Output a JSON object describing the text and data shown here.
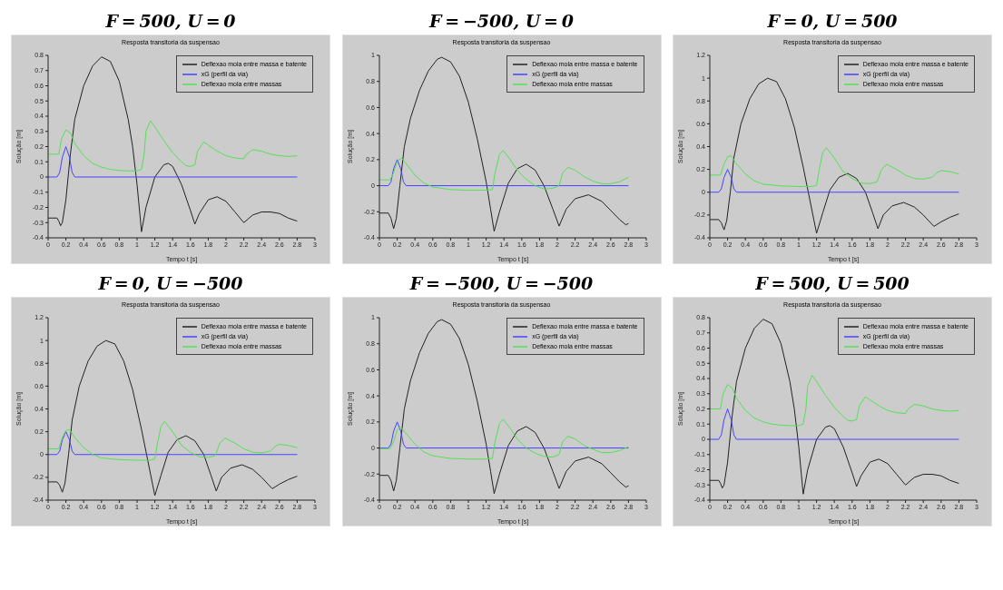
{
  "chart_data": [
    {
      "type": "line",
      "title": "F = 500, U = 0",
      "subtitle": "Resposta transitoria da suspensao",
      "xlabel": "Tempo t [s]",
      "ylabel": "Solução [m]",
      "legend": "top right",
      "xlim": [
        0,
        3
      ],
      "xticks": [
        0,
        0.2,
        0.4,
        0.6,
        0.8,
        1,
        1.2,
        1.4,
        1.6,
        1.8,
        2,
        2.2,
        2.4,
        2.6,
        2.8,
        3
      ],
      "ylim": [
        -0.4,
        0.8
      ],
      "yticks": [
        -0.4,
        -0.3,
        -0.2,
        -0.1,
        0,
        0.1,
        0.2,
        0.3,
        0.4,
        0.5,
        0.6,
        0.7,
        0.8
      ],
      "series": [
        {
          "name": "Deflexao mola entre massa e batente",
          "color": "#222222",
          "x": [
            0,
            0.1,
            0.12,
            0.14,
            0.16,
            0.2,
            0.25,
            0.3,
            0.4,
            0.5,
            0.6,
            0.7,
            0.8,
            0.9,
            0.95,
            1.0,
            1.05,
            1.1,
            1.2,
            1.3,
            1.35,
            1.4,
            1.5,
            1.6,
            1.65,
            1.7,
            1.8,
            1.9,
            2.0,
            2.1,
            2.2,
            2.3,
            2.4,
            2.5,
            2.6,
            2.7,
            2.8
          ],
          "values": [
            -0.27,
            -0.27,
            -0.29,
            -0.32,
            -0.3,
            -0.15,
            0.15,
            0.38,
            0.6,
            0.73,
            0.79,
            0.76,
            0.63,
            0.38,
            0.2,
            -0.05,
            -0.36,
            -0.2,
            0.0,
            0.08,
            0.09,
            0.07,
            -0.05,
            -0.22,
            -0.31,
            -0.24,
            -0.15,
            -0.13,
            -0.16,
            -0.23,
            -0.3,
            -0.25,
            -0.23,
            -0.23,
            -0.24,
            -0.27,
            -0.29
          ]
        },
        {
          "name": "xG (perfil da via)",
          "color": "#4444ff",
          "x": [
            0,
            0.1,
            0.13,
            0.16,
            0.2,
            0.24,
            0.27,
            0.3,
            2.8
          ],
          "values": [
            0,
            0,
            0.03,
            0.13,
            0.2,
            0.13,
            0.03,
            0,
            0
          ]
        },
        {
          "name": "Deflexao mola entre massas",
          "color": "#55e055",
          "x": [
            0,
            0.12,
            0.15,
            0.2,
            0.25,
            0.3,
            0.4,
            0.5,
            0.6,
            0.7,
            0.8,
            0.9,
            1.0,
            1.05,
            1.08,
            1.1,
            1.15,
            1.2,
            1.3,
            1.4,
            1.5,
            1.55,
            1.6,
            1.65,
            1.68,
            1.75,
            1.8,
            1.9,
            2.0,
            2.1,
            2.2,
            2.23,
            2.3,
            2.4,
            2.5,
            2.6,
            2.7,
            2.8
          ],
          "values": [
            0.15,
            0.15,
            0.25,
            0.31,
            0.29,
            0.22,
            0.14,
            0.09,
            0.065,
            0.05,
            0.043,
            0.04,
            0.04,
            0.05,
            0.15,
            0.3,
            0.37,
            0.33,
            0.24,
            0.16,
            0.1,
            0.075,
            0.07,
            0.08,
            0.17,
            0.23,
            0.21,
            0.17,
            0.14,
            0.125,
            0.12,
            0.15,
            0.18,
            0.17,
            0.15,
            0.14,
            0.135,
            0.14
          ]
        }
      ]
    },
    {
      "type": "line",
      "title": "F = −500, U = 0",
      "subtitle": "Resposta transitoria da suspensao",
      "xlabel": "Tempo t [s]",
      "ylabel": "Solução [m]",
      "legend": "top right",
      "xlim": [
        0,
        3
      ],
      "xticks": [
        0,
        0.2,
        0.4,
        0.6,
        0.8,
        1,
        1.2,
        1.4,
        1.6,
        1.8,
        2,
        2.2,
        2.4,
        2.6,
        2.8,
        3
      ],
      "ylim": [
        -0.4,
        1
      ],
      "yticks": [
        -0.4,
        -0.2,
        0,
        0.2,
        0.4,
        0.6,
        0.8,
        1
      ],
      "series": [
        {
          "name": "Deflexao mola entre massa e batente",
          "color": "#222222",
          "x": [
            0,
            0.1,
            0.13,
            0.16,
            0.19,
            0.23,
            0.28,
            0.35,
            0.45,
            0.55,
            0.65,
            0.7,
            0.8,
            0.9,
            1.0,
            1.1,
            1.2,
            1.25,
            1.29,
            1.35,
            1.45,
            1.55,
            1.65,
            1.75,
            1.85,
            1.95,
            2.02,
            2.1,
            2.2,
            2.35,
            2.5,
            2.6,
            2.7,
            2.77,
            2.8
          ],
          "values": [
            -0.21,
            -0.21,
            -0.25,
            -0.33,
            -0.25,
            0.0,
            0.3,
            0.52,
            0.73,
            0.88,
            0.97,
            0.985,
            0.95,
            0.84,
            0.64,
            0.36,
            0.03,
            -0.18,
            -0.35,
            -0.2,
            0.02,
            0.13,
            0.165,
            0.12,
            0.0,
            -0.18,
            -0.31,
            -0.18,
            -0.1,
            -0.07,
            -0.12,
            -0.19,
            -0.26,
            -0.3,
            -0.29
          ]
        },
        {
          "name": "xG (perfil da via)",
          "color": "#4444ff",
          "x": [
            0,
            0.1,
            0.13,
            0.16,
            0.2,
            0.24,
            0.27,
            0.3,
            2.8
          ],
          "values": [
            0,
            0,
            0.03,
            0.13,
            0.2,
            0.13,
            0.03,
            0,
            0
          ]
        },
        {
          "name": "Deflexao mola entre massas",
          "color": "#55e055",
          "x": [
            0,
            0.12,
            0.16,
            0.2,
            0.25,
            0.3,
            0.4,
            0.5,
            0.6,
            0.8,
            1.0,
            1.2,
            1.27,
            1.3,
            1.35,
            1.39,
            1.45,
            1.55,
            1.65,
            1.75,
            1.85,
            1.95,
            2.02,
            2.06,
            2.12,
            2.2,
            2.3,
            2.4,
            2.5,
            2.6,
            2.7,
            2.8
          ],
          "values": [
            0.045,
            0.045,
            0.1,
            0.19,
            0.21,
            0.17,
            0.08,
            0.02,
            -0.01,
            -0.03,
            -0.035,
            -0.035,
            -0.03,
            0.1,
            0.24,
            0.27,
            0.22,
            0.12,
            0.05,
            0.0,
            -0.025,
            -0.02,
            0.0,
            0.1,
            0.14,
            0.12,
            0.07,
            0.035,
            0.015,
            0.015,
            0.03,
            0.065
          ]
        }
      ]
    },
    {
      "type": "line",
      "title": "F = 0, U = 500",
      "subtitle": "Resposta transitoria da suspensao",
      "xlabel": "Tempo t [s]",
      "ylabel": "Solução [m]",
      "legend": "top right",
      "xlim": [
        0,
        3
      ],
      "xticks": [
        0,
        0.2,
        0.4,
        0.6,
        0.8,
        1,
        1.2,
        1.4,
        1.6,
        1.8,
        2,
        2.2,
        2.4,
        2.6,
        2.8,
        3
      ],
      "ylim": [
        -0.4,
        1.2
      ],
      "yticks": [
        -0.4,
        -0.2,
        0,
        0.2,
        0.4,
        0.6,
        0.8,
        1,
        1.2
      ],
      "series": [
        {
          "name": "Deflexao mola entre massa e batente",
          "color": "#222222",
          "x": [
            0,
            0.1,
            0.13,
            0.16,
            0.19,
            0.23,
            0.27,
            0.35,
            0.45,
            0.55,
            0.65,
            0.75,
            0.85,
            0.95,
            1.05,
            1.12,
            1.2,
            1.27,
            1.35,
            1.45,
            1.55,
            1.65,
            1.75,
            1.83,
            1.89,
            1.95,
            2.05,
            2.18,
            2.3,
            2.4,
            2.52,
            2.6,
            2.7,
            2.8
          ],
          "values": [
            -0.24,
            -0.24,
            -0.27,
            -0.33,
            -0.25,
            0.0,
            0.3,
            0.6,
            0.82,
            0.95,
            1.0,
            0.97,
            0.82,
            0.57,
            0.22,
            -0.05,
            -0.36,
            -0.18,
            0.02,
            0.13,
            0.165,
            0.12,
            0.0,
            -0.18,
            -0.32,
            -0.2,
            -0.12,
            -0.09,
            -0.13,
            -0.2,
            -0.3,
            -0.26,
            -0.22,
            -0.19
          ]
        },
        {
          "name": "xG (perfil da via)",
          "color": "#4444ff",
          "x": [
            0,
            0.1,
            0.13,
            0.16,
            0.2,
            0.24,
            0.27,
            0.3,
            2.8
          ],
          "values": [
            0,
            0,
            0.03,
            0.13,
            0.2,
            0.13,
            0.03,
            0,
            0
          ]
        },
        {
          "name": "Deflexao mola entre massas",
          "color": "#55e055",
          "x": [
            0,
            0.12,
            0.16,
            0.2,
            0.24,
            0.3,
            0.4,
            0.5,
            0.6,
            0.8,
            1.0,
            1.15,
            1.2,
            1.23,
            1.27,
            1.31,
            1.4,
            1.5,
            1.6,
            1.7,
            1.8,
            1.88,
            1.93,
            1.99,
            2.1,
            2.2,
            2.3,
            2.4,
            2.5,
            2.55,
            2.6,
            2.7,
            2.8
          ],
          "values": [
            0.15,
            0.15,
            0.25,
            0.31,
            0.32,
            0.25,
            0.16,
            0.1,
            0.07,
            0.055,
            0.05,
            0.05,
            0.06,
            0.2,
            0.35,
            0.39,
            0.3,
            0.18,
            0.12,
            0.08,
            0.075,
            0.09,
            0.2,
            0.245,
            0.2,
            0.15,
            0.12,
            0.115,
            0.13,
            0.17,
            0.19,
            0.18,
            0.16
          ]
        }
      ]
    },
    {
      "type": "line",
      "title": "F = 0, U = −500",
      "subtitle": "Resposta transitoria da suspensao",
      "xlabel": "Tempo t [s]",
      "ylabel": "Solução [m]",
      "legend": "top right",
      "xlim": [
        0,
        3
      ],
      "xticks": [
        0,
        0.2,
        0.4,
        0.6,
        0.8,
        1,
        1.2,
        1.4,
        1.6,
        1.8,
        2,
        2.2,
        2.4,
        2.6,
        2.8,
        3
      ],
      "ylim": [
        -0.4,
        1.2
      ],
      "yticks": [
        -0.4,
        -0.2,
        0,
        0.2,
        0.4,
        0.6,
        0.8,
        1,
        1.2
      ],
      "series": [
        {
          "name": "Deflexao mola entre massa e batente",
          "color": "#222222",
          "x": [
            0,
            0.1,
            0.13,
            0.16,
            0.19,
            0.23,
            0.27,
            0.35,
            0.45,
            0.55,
            0.65,
            0.75,
            0.85,
            0.95,
            1.05,
            1.12,
            1.2,
            1.27,
            1.35,
            1.45,
            1.55,
            1.65,
            1.75,
            1.83,
            1.89,
            1.95,
            2.05,
            2.18,
            2.3,
            2.4,
            2.52,
            2.6,
            2.7,
            2.8
          ],
          "values": [
            -0.24,
            -0.24,
            -0.27,
            -0.33,
            -0.25,
            0.0,
            0.3,
            0.6,
            0.82,
            0.95,
            1.0,
            0.97,
            0.82,
            0.57,
            0.22,
            -0.05,
            -0.36,
            -0.18,
            0.02,
            0.13,
            0.165,
            0.12,
            0.0,
            -0.18,
            -0.32,
            -0.2,
            -0.12,
            -0.09,
            -0.13,
            -0.2,
            -0.3,
            -0.26,
            -0.22,
            -0.19
          ]
        },
        {
          "name": "xG (perfil da via)",
          "color": "#4444ff",
          "x": [
            0,
            0.1,
            0.13,
            0.16,
            0.2,
            0.24,
            0.27,
            0.3,
            2.8
          ],
          "values": [
            0,
            0,
            0.03,
            0.13,
            0.2,
            0.13,
            0.03,
            0,
            0
          ]
        },
        {
          "name": "Deflexao mola entre massas",
          "color": "#55e055",
          "x": [
            0,
            0.12,
            0.16,
            0.2,
            0.24,
            0.3,
            0.4,
            0.5,
            0.6,
            0.8,
            1.0,
            1.15,
            1.2,
            1.23,
            1.27,
            1.31,
            1.4,
            1.5,
            1.6,
            1.7,
            1.8,
            1.88,
            1.93,
            1.99,
            2.1,
            2.2,
            2.3,
            2.4,
            2.5,
            2.55,
            2.6,
            2.7,
            2.8
          ],
          "values": [
            0.05,
            0.05,
            0.15,
            0.21,
            0.22,
            0.15,
            0.06,
            0.0,
            -0.03,
            -0.045,
            -0.05,
            -0.05,
            -0.04,
            0.1,
            0.25,
            0.29,
            0.2,
            0.08,
            0.02,
            -0.02,
            -0.025,
            -0.01,
            0.1,
            0.145,
            0.1,
            0.05,
            0.02,
            0.015,
            0.03,
            0.07,
            0.09,
            0.08,
            0.06
          ]
        }
      ]
    },
    {
      "type": "line",
      "title": "F = −500, U = −500",
      "subtitle": "Resposta transitoria da suspensao",
      "xlabel": "Tempo t [s]",
      "ylabel": "Solução [m]",
      "legend": "top right",
      "xlim": [
        0,
        3
      ],
      "xticks": [
        0,
        0.2,
        0.4,
        0.6,
        0.8,
        1,
        1.2,
        1.4,
        1.6,
        1.8,
        2,
        2.2,
        2.4,
        2.6,
        2.8,
        3
      ],
      "ylim": [
        -0.4,
        1
      ],
      "yticks": [
        -0.4,
        -0.2,
        0,
        0.2,
        0.4,
        0.6,
        0.8,
        1
      ],
      "series": [
        {
          "name": "Deflexao mola entre massa e batente",
          "color": "#222222",
          "x": [
            0,
            0.1,
            0.13,
            0.16,
            0.19,
            0.23,
            0.28,
            0.35,
            0.45,
            0.55,
            0.65,
            0.7,
            0.8,
            0.9,
            1.0,
            1.1,
            1.2,
            1.25,
            1.29,
            1.35,
            1.45,
            1.55,
            1.65,
            1.75,
            1.85,
            1.95,
            2.02,
            2.1,
            2.2,
            2.35,
            2.5,
            2.6,
            2.7,
            2.77,
            2.8
          ],
          "values": [
            -0.21,
            -0.21,
            -0.25,
            -0.33,
            -0.25,
            0.0,
            0.3,
            0.52,
            0.73,
            0.88,
            0.97,
            0.985,
            0.95,
            0.84,
            0.64,
            0.36,
            0.03,
            -0.18,
            -0.35,
            -0.2,
            0.02,
            0.13,
            0.165,
            0.12,
            0.0,
            -0.18,
            -0.31,
            -0.18,
            -0.1,
            -0.07,
            -0.12,
            -0.19,
            -0.26,
            -0.3,
            -0.29
          ]
        },
        {
          "name": "xG (perfil da via)",
          "color": "#4444ff",
          "x": [
            0,
            0.1,
            0.13,
            0.16,
            0.2,
            0.24,
            0.27,
            0.3,
            2.8
          ],
          "values": [
            0,
            0,
            0.03,
            0.13,
            0.2,
            0.13,
            0.03,
            0,
            0
          ]
        },
        {
          "name": "Deflexao mola entre massas",
          "color": "#55e055",
          "x": [
            0,
            0.12,
            0.16,
            0.2,
            0.24,
            0.3,
            0.4,
            0.5,
            0.6,
            0.8,
            1.0,
            1.2,
            1.27,
            1.3,
            1.35,
            1.39,
            1.45,
            1.55,
            1.65,
            1.75,
            1.85,
            1.95,
            2.02,
            2.06,
            2.12,
            2.2,
            2.3,
            2.4,
            2.5,
            2.6,
            2.7,
            2.8
          ],
          "values": [
            -0.005,
            -0.005,
            0.05,
            0.14,
            0.16,
            0.11,
            0.03,
            -0.03,
            -0.06,
            -0.08,
            -0.085,
            -0.085,
            -0.08,
            0.05,
            0.19,
            0.22,
            0.17,
            0.07,
            0.0,
            -0.04,
            -0.065,
            -0.07,
            -0.05,
            0.05,
            0.09,
            0.07,
            0.02,
            -0.01,
            -0.035,
            -0.035,
            -0.02,
            0.01
          ]
        }
      ]
    },
    {
      "type": "line",
      "title": "F = 500, U = 500",
      "subtitle": "Resposta transitoria da suspensao",
      "xlabel": "Tempo t [s]",
      "ylabel": "Solução [m]",
      "legend": "top right",
      "xlim": [
        0,
        3
      ],
      "xticks": [
        0,
        0.2,
        0.4,
        0.6,
        0.8,
        1,
        1.2,
        1.4,
        1.6,
        1.8,
        2,
        2.2,
        2.4,
        2.6,
        2.8,
        3
      ],
      "ylim": [
        -0.4,
        0.8
      ],
      "yticks": [
        -0.4,
        -0.3,
        -0.2,
        -0.1,
        0,
        0.1,
        0.2,
        0.3,
        0.4,
        0.5,
        0.6,
        0.7,
        0.8
      ],
      "series": [
        {
          "name": "Deflexao mola entre massa e batente",
          "color": "#222222",
          "x": [
            0,
            0.1,
            0.12,
            0.14,
            0.16,
            0.2,
            0.25,
            0.3,
            0.4,
            0.5,
            0.6,
            0.7,
            0.8,
            0.9,
            0.95,
            1.0,
            1.05,
            1.1,
            1.2,
            1.3,
            1.35,
            1.4,
            1.5,
            1.6,
            1.65,
            1.7,
            1.8,
            1.9,
            2.0,
            2.1,
            2.2,
            2.3,
            2.4,
            2.5,
            2.6,
            2.7,
            2.8
          ],
          "values": [
            -0.27,
            -0.27,
            -0.29,
            -0.32,
            -0.3,
            -0.15,
            0.15,
            0.38,
            0.6,
            0.73,
            0.79,
            0.76,
            0.63,
            0.38,
            0.2,
            -0.05,
            -0.36,
            -0.2,
            0.0,
            0.08,
            0.09,
            0.07,
            -0.05,
            -0.22,
            -0.31,
            -0.24,
            -0.15,
            -0.13,
            -0.16,
            -0.23,
            -0.3,
            -0.25,
            -0.23,
            -0.23,
            -0.24,
            -0.27,
            -0.29
          ]
        },
        {
          "name": "xG (perfil da via)",
          "color": "#4444ff",
          "x": [
            0,
            0.1,
            0.13,
            0.16,
            0.2,
            0.24,
            0.27,
            0.3,
            2.8
          ],
          "values": [
            0,
            0,
            0.03,
            0.13,
            0.2,
            0.13,
            0.03,
            0,
            0
          ]
        },
        {
          "name": "Deflexao mola entre massas",
          "color": "#55e055",
          "x": [
            0,
            0.12,
            0.15,
            0.2,
            0.25,
            0.3,
            0.4,
            0.5,
            0.6,
            0.7,
            0.8,
            0.9,
            1.0,
            1.05,
            1.08,
            1.1,
            1.15,
            1.2,
            1.3,
            1.4,
            1.5,
            1.55,
            1.6,
            1.65,
            1.68,
            1.75,
            1.8,
            1.9,
            2.0,
            2.1,
            2.2,
            2.23,
            2.3,
            2.4,
            2.5,
            2.6,
            2.7,
            2.8
          ],
          "values": [
            0.2,
            0.2,
            0.3,
            0.36,
            0.34,
            0.27,
            0.19,
            0.14,
            0.115,
            0.1,
            0.093,
            0.09,
            0.09,
            0.1,
            0.2,
            0.35,
            0.42,
            0.38,
            0.29,
            0.21,
            0.15,
            0.125,
            0.12,
            0.13,
            0.22,
            0.28,
            0.26,
            0.22,
            0.19,
            0.175,
            0.17,
            0.2,
            0.23,
            0.22,
            0.2,
            0.19,
            0.185,
            0.19
          ]
        }
      ]
    }
  ]
}
